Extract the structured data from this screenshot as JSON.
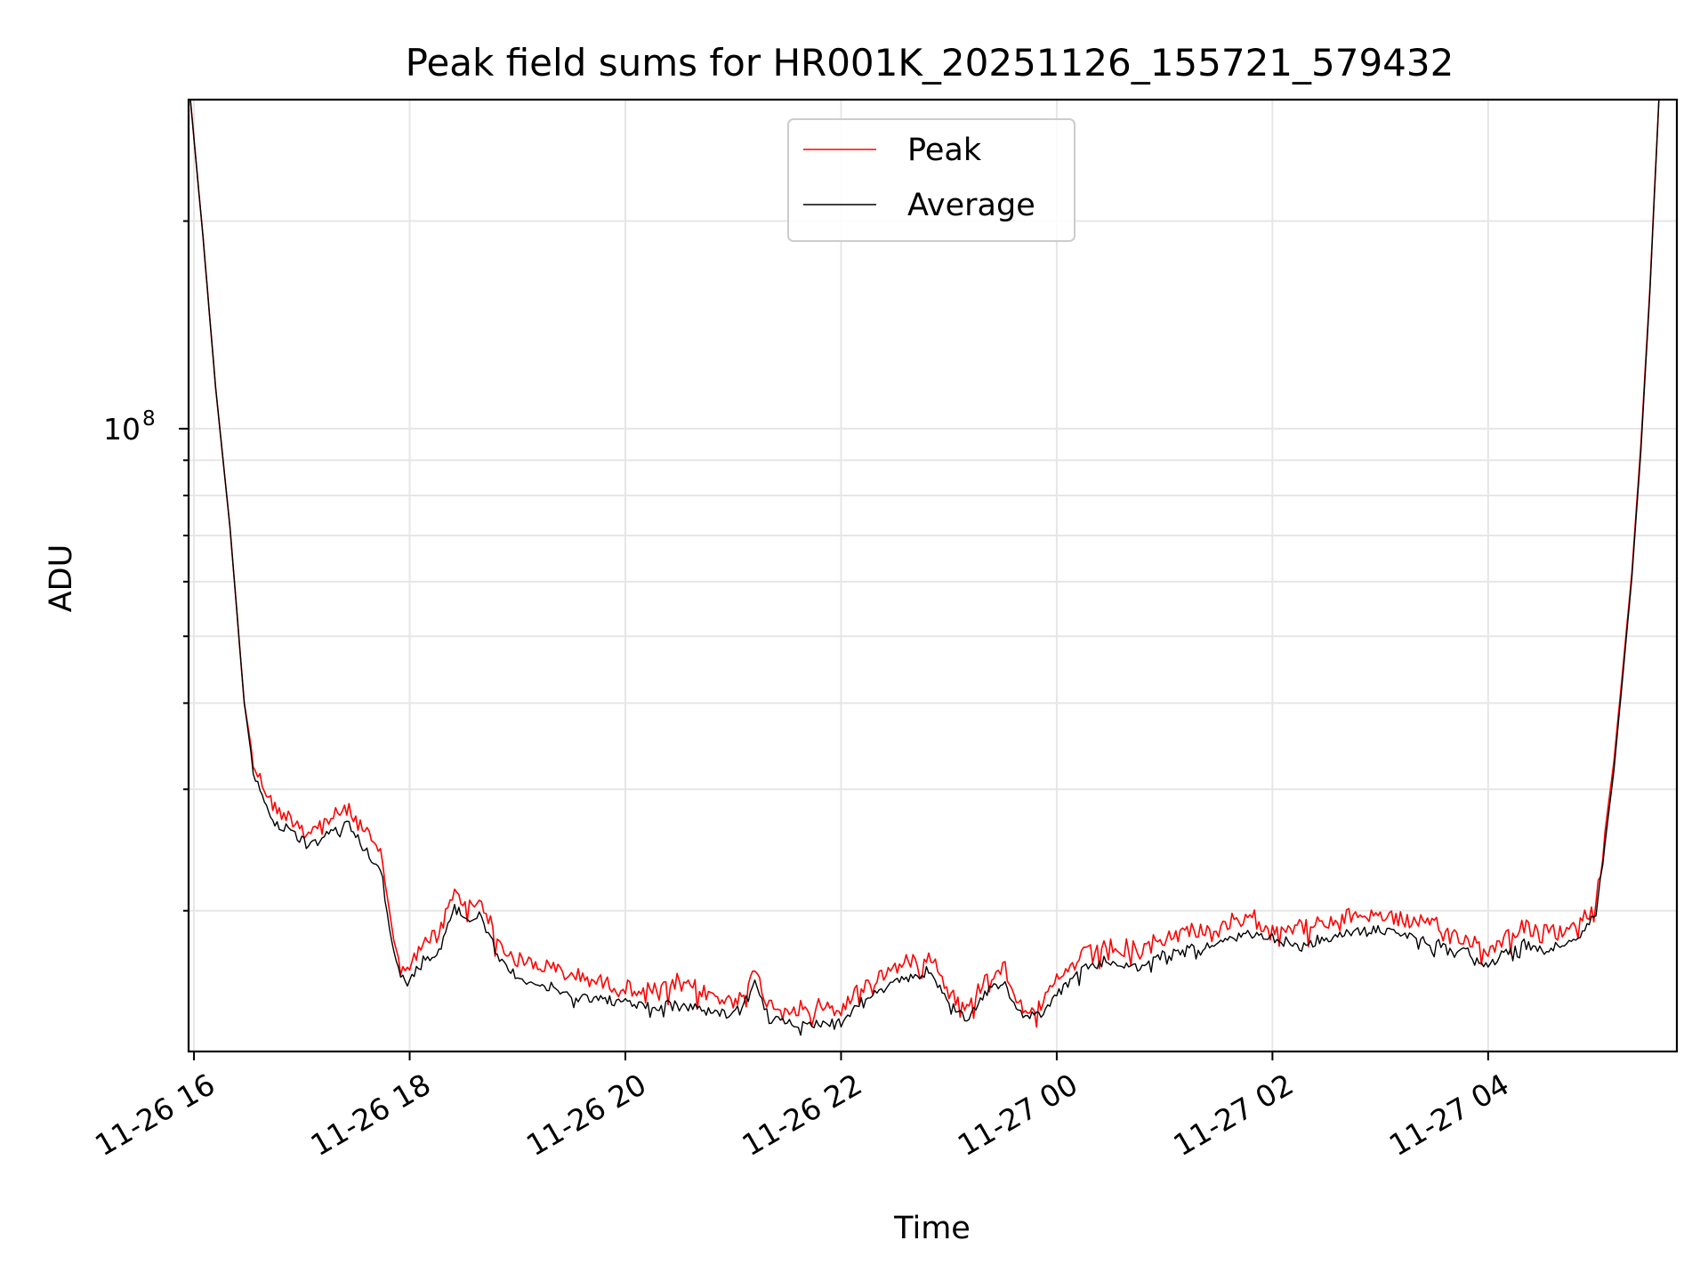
{
  "chart_data": {
    "type": "line",
    "title": "Peak field sums for HR001K_20251126_155721_579432",
    "xlabel": "Time",
    "ylabel": "ADU",
    "y_scale": "log",
    "grid": true,
    "legend_position": "top-center",
    "xlim": [
      "2025-11-26 15:57",
      "2025-11-27 05:45"
    ],
    "ylim": [
      12500000,
      300000000
    ],
    "x_ticks": [
      {
        "value": "2025-11-26 16:00",
        "label": "11-26 16"
      },
      {
        "value": "2025-11-26 18:00",
        "label": "11-26 18"
      },
      {
        "value": "2025-11-26 20:00",
        "label": "11-26 20"
      },
      {
        "value": "2025-11-26 22:00",
        "label": "11-26 22"
      },
      {
        "value": "2025-11-27 00:00",
        "label": "11-27 00"
      },
      {
        "value": "2025-11-27 02:00",
        "label": "11-27 02"
      },
      {
        "value": "2025-11-27 04:00",
        "label": "11-27 04"
      }
    ],
    "y_major_ticks": [
      {
        "value": 100000000,
        "base": "10",
        "exponent": "8"
      }
    ],
    "y_minor_ticks": [
      20000000,
      30000000,
      40000000,
      50000000,
      60000000,
      70000000,
      80000000,
      90000000,
      200000000
    ],
    "series": [
      {
        "name": "Peak",
        "color": "#ff0000",
        "points": [
          [
            "2025-11-26 15:58",
            300000000
          ],
          [
            "2025-11-26 16:05",
            190000000
          ],
          [
            "2025-11-26 16:12",
            115000000
          ],
          [
            "2025-11-26 16:20",
            72000000
          ],
          [
            "2025-11-26 16:28",
            40000000
          ],
          [
            "2025-11-26 16:33",
            33000000
          ],
          [
            "2025-11-26 16:38",
            31000000
          ],
          [
            "2025-11-26 16:45",
            28500000
          ],
          [
            "2025-11-26 16:55",
            27500000
          ],
          [
            "2025-11-26 17:05",
            26500000
          ],
          [
            "2025-11-26 17:15",
            27500000
          ],
          [
            "2025-11-26 17:25",
            28500000
          ],
          [
            "2025-11-26 17:35",
            26500000
          ],
          [
            "2025-11-26 17:45",
            24000000
          ],
          [
            "2025-11-26 17:50",
            19000000
          ],
          [
            "2025-11-26 17:55",
            17000000
          ],
          [
            "2025-11-26 18:00",
            16500000
          ],
          [
            "2025-11-26 18:05",
            18000000
          ],
          [
            "2025-11-26 18:15",
            18500000
          ],
          [
            "2025-11-26 18:25",
            21500000
          ],
          [
            "2025-11-26 18:32",
            20500000
          ],
          [
            "2025-11-26 18:40",
            21000000
          ],
          [
            "2025-11-26 18:50",
            18000000
          ],
          [
            "2025-11-26 19:00",
            17200000
          ],
          [
            "2025-11-26 19:15",
            16800000
          ],
          [
            "2025-11-26 19:30",
            16400000
          ],
          [
            "2025-11-26 19:45",
            16000000
          ],
          [
            "2025-11-26 20:00",
            15700000
          ],
          [
            "2025-11-26 20:15",
            15500000
          ],
          [
            "2025-11-26 20:30",
            15800000
          ],
          [
            "2025-11-26 20:45",
            15400000
          ],
          [
            "2025-11-26 21:00",
            14900000
          ],
          [
            "2025-11-26 21:12",
            16400000
          ],
          [
            "2025-11-26 21:20",
            14800000
          ],
          [
            "2025-11-26 21:40",
            14600000
          ],
          [
            "2025-11-26 22:00",
            14600000
          ],
          [
            "2025-11-26 22:10",
            15600000
          ],
          [
            "2025-11-26 22:20",
            16200000
          ],
          [
            "2025-11-26 22:30",
            16800000
          ],
          [
            "2025-11-26 22:40",
            17200000
          ],
          [
            "2025-11-26 22:50",
            17500000
          ],
          [
            "2025-11-26 23:00",
            15500000
          ],
          [
            "2025-11-26 23:10",
            14500000
          ],
          [
            "2025-11-26 23:20",
            16200000
          ],
          [
            "2025-11-26 23:30",
            16800000
          ],
          [
            "2025-11-26 23:40",
            14800000
          ],
          [
            "2025-11-26 23:50",
            14600000
          ],
          [
            "2025-11-27 00:00",
            16000000
          ],
          [
            "2025-11-27 00:15",
            17500000
          ],
          [
            "2025-11-27 00:30",
            18000000
          ],
          [
            "2025-11-27 00:45",
            17500000
          ],
          [
            "2025-11-27 01:00",
            18500000
          ],
          [
            "2025-11-27 01:15",
            19000000
          ],
          [
            "2025-11-27 01:30",
            19000000
          ],
          [
            "2025-11-27 01:45",
            19600000
          ],
          [
            "2025-11-27 02:00",
            19300000
          ],
          [
            "2025-11-27 02:15",
            19200000
          ],
          [
            "2025-11-27 02:30",
            19300000
          ],
          [
            "2025-11-27 02:45",
            20000000
          ],
          [
            "2025-11-27 03:00",
            20000000
          ],
          [
            "2025-11-27 03:15",
            19600000
          ],
          [
            "2025-11-27 03:30",
            19200000
          ],
          [
            "2025-11-27 03:45",
            18600000
          ],
          [
            "2025-11-27 04:00",
            17800000
          ],
          [
            "2025-11-27 04:10",
            18600000
          ],
          [
            "2025-11-27 04:20",
            19300000
          ],
          [
            "2025-11-27 04:30",
            18600000
          ],
          [
            "2025-11-27 04:40",
            19000000
          ],
          [
            "2025-11-27 04:50",
            19200000
          ],
          [
            "2025-11-27 05:00",
            21000000
          ],
          [
            "2025-11-27 05:05",
            26000000
          ],
          [
            "2025-11-27 05:10",
            33000000
          ],
          [
            "2025-11-27 05:15",
            45000000
          ],
          [
            "2025-11-27 05:20",
            62000000
          ],
          [
            "2025-11-27 05:25",
            95000000
          ],
          [
            "2025-11-27 05:30",
            160000000
          ],
          [
            "2025-11-27 05:35",
            300000000
          ]
        ]
      },
      {
        "name": "Average",
        "color": "#000000",
        "points": [
          [
            "2025-11-26 15:58",
            300000000
          ],
          [
            "2025-11-26 16:05",
            190000000
          ],
          [
            "2025-11-26 16:12",
            115000000
          ],
          [
            "2025-11-26 16:20",
            72000000
          ],
          [
            "2025-11-26 16:28",
            40000000
          ],
          [
            "2025-11-26 16:33",
            32000000
          ],
          [
            "2025-11-26 16:38",
            29500000
          ],
          [
            "2025-11-26 16:45",
            27000000
          ],
          [
            "2025-11-26 16:55",
            26000000
          ],
          [
            "2025-11-26 17:05",
            25000000
          ],
          [
            "2025-11-26 17:15",
            26000000
          ],
          [
            "2025-11-26 17:25",
            27000000
          ],
          [
            "2025-11-26 17:35",
            25000000
          ],
          [
            "2025-11-26 17:45",
            22500000
          ],
          [
            "2025-11-26 17:50",
            18000000
          ],
          [
            "2025-11-26 17:55",
            16200000
          ],
          [
            "2025-11-26 18:00",
            15800000
          ],
          [
            "2025-11-26 18:05",
            17000000
          ],
          [
            "2025-11-26 18:15",
            17500000
          ],
          [
            "2025-11-26 18:25",
            20500000
          ],
          [
            "2025-11-26 18:32",
            19500000
          ],
          [
            "2025-11-26 18:40",
            20000000
          ],
          [
            "2025-11-26 18:50",
            17000000
          ],
          [
            "2025-11-26 19:00",
            16200000
          ],
          [
            "2025-11-26 19:15",
            15600000
          ],
          [
            "2025-11-26 19:30",
            15200000
          ],
          [
            "2025-11-26 19:45",
            15000000
          ],
          [
            "2025-11-26 20:00",
            14800000
          ],
          [
            "2025-11-26 20:15",
            14600000
          ],
          [
            "2025-11-26 20:30",
            14800000
          ],
          [
            "2025-11-26 20:45",
            14500000
          ],
          [
            "2025-11-26 21:00",
            14200000
          ],
          [
            "2025-11-26 21:12",
            15800000
          ],
          [
            "2025-11-26 21:20",
            14000000
          ],
          [
            "2025-11-26 21:40",
            13800000
          ],
          [
            "2025-11-26 22:00",
            13900000
          ],
          [
            "2025-11-26 22:10",
            14800000
          ],
          [
            "2025-11-26 22:20",
            15300000
          ],
          [
            "2025-11-26 22:30",
            15800000
          ],
          [
            "2025-11-26 22:40",
            16200000
          ],
          [
            "2025-11-26 22:50",
            16400000
          ],
          [
            "2025-11-26 23:00",
            14800000
          ],
          [
            "2025-11-26 23:10",
            14000000
          ],
          [
            "2025-11-26 23:20",
            15300000
          ],
          [
            "2025-11-26 23:30",
            15900000
          ],
          [
            "2025-11-26 23:40",
            14200000
          ],
          [
            "2025-11-26 23:50",
            14200000
          ],
          [
            "2025-11-27 00:00",
            15200000
          ],
          [
            "2025-11-27 00:15",
            16600000
          ],
          [
            "2025-11-27 00:30",
            17000000
          ],
          [
            "2025-11-27 00:45",
            16600000
          ],
          [
            "2025-11-27 01:00",
            17400000
          ],
          [
            "2025-11-27 01:15",
            17800000
          ],
          [
            "2025-11-27 01:30",
            18000000
          ],
          [
            "2025-11-27 01:45",
            18600000
          ],
          [
            "2025-11-27 02:00",
            18400000
          ],
          [
            "2025-11-27 02:15",
            17800000
          ],
          [
            "2025-11-27 02:30",
            18300000
          ],
          [
            "2025-11-27 02:45",
            18800000
          ],
          [
            "2025-11-27 03:00",
            18900000
          ],
          [
            "2025-11-27 03:15",
            18600000
          ],
          [
            "2025-11-27 03:30",
            18000000
          ],
          [
            "2025-11-27 03:45",
            17700000
          ],
          [
            "2025-11-27 04:00",
            16800000
          ],
          [
            "2025-11-27 04:10",
            17600000
          ],
          [
            "2025-11-27 04:20",
            18000000
          ],
          [
            "2025-11-27 04:30",
            17600000
          ],
          [
            "2025-11-27 04:40",
            18000000
          ],
          [
            "2025-11-27 04:50",
            18200000
          ],
          [
            "2025-11-27 05:00",
            20000000
          ],
          [
            "2025-11-27 05:05",
            25000000
          ],
          [
            "2025-11-27 05:10",
            32000000
          ],
          [
            "2025-11-27 05:15",
            44000000
          ],
          [
            "2025-11-27 05:20",
            61000000
          ],
          [
            "2025-11-27 05:25",
            93000000
          ],
          [
            "2025-11-27 05:30",
            158000000
          ],
          [
            "2025-11-27 05:35",
            300000000
          ]
        ]
      }
    ]
  }
}
